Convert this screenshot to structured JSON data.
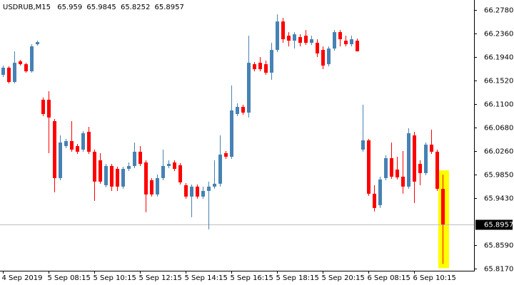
{
  "chart_data": {
    "type": "candlestick",
    "title": "USDRUB,M15",
    "up_color": "#4682b4",
    "down_color": "#ff0000",
    "price_line_color": "#c0c0c0",
    "highlight_color": "#ffff00",
    "ylim": [
      65.813,
      66.296
    ],
    "yticks": [
      {
        "value": 66.278,
        "label": "66.2780"
      },
      {
        "value": 66.236,
        "label": "66.2360"
      },
      {
        "value": 66.194,
        "label": "66.1940"
      },
      {
        "value": 66.152,
        "label": "66.1520"
      },
      {
        "value": 66.11,
        "label": "66.1100"
      },
      {
        "value": 66.068,
        "label": "66.0680"
      },
      {
        "value": 66.026,
        "label": "66.0260"
      },
      {
        "value": 65.985,
        "label": "65.9850"
      },
      {
        "value": 65.943,
        "label": "65.9430"
      },
      {
        "value": 65.859,
        "label": "65.8590"
      },
      {
        "value": 65.817,
        "label": "65.8170"
      }
    ],
    "categories": [
      "4 Sep 2019",
      null,
      null,
      null,
      null,
      null,
      null,
      null,
      "5 Sep 08:15",
      null,
      null,
      null,
      null,
      null,
      null,
      null,
      "5 Sep 10:15",
      null,
      null,
      null,
      null,
      null,
      null,
      null,
      "5 Sep 12:15",
      null,
      null,
      null,
      null,
      null,
      null,
      null,
      "5 Sep 14:15",
      null,
      null,
      null,
      null,
      null,
      null,
      null,
      "5 Sep 16:15",
      null,
      null,
      null,
      null,
      null,
      null,
      null,
      "5 Sep 18:15",
      null,
      null,
      null,
      null,
      null,
      null,
      null,
      "5 Sep 20:15",
      null,
      null,
      null,
      null,
      null,
      null,
      null,
      "6 Sep 08:15",
      null,
      null,
      null,
      null,
      null,
      null,
      null,
      "6 Sep 10:15",
      null,
      null,
      null,
      null,
      null
    ],
    "open": [
      66.1625,
      66.1752,
      66.1498,
      66.1866,
      66.1815,
      66.1688,
      66.2171,
      66.118,
      66.118,
      66.0799,
      65.9783,
      66.0354,
      66.0443,
      66.0354,
      66.0291,
      66.0609,
      66.0253,
      66.0101,
      65.9656,
      65.9999,
      65.9948,
      65.9631,
      65.9948,
      65.9999,
      66.0253,
      66.0062,
      65.9745,
      65.9491,
      65.9783,
      65.9999,
      66.0062,
      66.0012,
      65.9656,
      65.9453,
      65.9631,
      65.9453,
      65.9554,
      65.9631,
      65.9682,
      66.0228,
      66.0164,
      66.0926,
      66.1053,
      66.0951,
      66.1815,
      66.184,
      66.1815,
      66.1663,
      66.2069,
      66.2577,
      66.2323,
      66.2234,
      66.2298,
      66.2323,
      66.2196,
      66.2196,
      66.2069,
      66.1815,
      66.2094,
      66.2387,
      66.2234,
      66.2171,
      66.2234,
      66.0291,
      66.0456,
      65.9504,
      65.93,
      65.9783,
      66.0139,
      65.9935,
      65.9808,
      65.9631,
      66.0545,
      66.0037,
      65.9872,
      66.038,
      66.0253,
      65.959
    ],
    "high": [
      66.179,
      66.1777,
      66.2044,
      66.1891,
      66.184,
      66.2171,
      66.2234,
      66.1218,
      66.1332,
      66.0837,
      66.0545,
      66.0482,
      66.0799,
      66.0393,
      66.0621,
      66.0697,
      66.0291,
      66.0228,
      66.0037,
      66.0037,
      65.9986,
      65.9986,
      66.0062,
      66.0418,
      66.0354,
      66.0101,
      65.9783,
      65.9847,
      66.0291,
      66.0101,
      66.0101,
      66.005,
      65.9694,
      65.9669,
      65.9669,
      65.9631,
      65.972,
      66.0101,
      66.0545,
      66.0266,
      66.1434,
      66.1117,
      66.1091,
      66.2323,
      66.1853,
      66.1942,
      66.1879,
      66.2196,
      66.2704,
      66.2641,
      66.2387,
      66.2387,
      66.2348,
      66.2425,
      66.2323,
      66.226,
      66.2133,
      66.2133,
      66.2425,
      66.2425,
      66.2323,
      66.2323,
      66.2272,
      66.1091,
      66.0482,
      65.9656,
      65.9808,
      66.0189,
      66.0418,
      66.0164,
      66.0266,
      66.0672,
      66.0609,
      66.0101,
      66.0418,
      66.0647,
      66.0291,
      65.9845
    ],
    "low": [
      66.1586,
      66.1472,
      66.1472,
      66.179,
      66.1663,
      66.1663,
      66.2145,
      66.0888,
      66.0228,
      65.9529,
      65.9745,
      66.0316,
      66.0253,
      66.0215,
      66.0253,
      66.0215,
      65.9377,
      65.9682,
      65.9618,
      65.9554,
      65.9554,
      65.9593,
      65.991,
      65.9961,
      65.9999,
      65.9174,
      65.9453,
      65.9453,
      65.9745,
      65.9961,
      65.991,
      65.9669,
      65.9415,
      65.9085,
      65.9415,
      65.9415,
      65.8869,
      65.9593,
      65.9631,
      66.0126,
      66.0126,
      66.0888,
      66.0913,
      66.0863,
      66.1688,
      66.1688,
      66.1625,
      66.1536,
      66.2031,
      66.2196,
      66.2133,
      66.2094,
      66.2133,
      66.2158,
      66.2158,
      66.1942,
      66.1726,
      66.1777,
      66.2056,
      66.2133,
      66.2133,
      66.2133,
      66.2044,
      66.0253,
      65.9466,
      65.9186,
      65.925,
      65.9745,
      65.977,
      65.9758,
      65.9504,
      65.9593,
      65.9339,
      65.9656,
      65.9834,
      66.0215,
      65.9554,
      65.8252
    ],
    "close": [
      66.1752,
      66.1498,
      66.184,
      66.1815,
      66.1688,
      66.2133,
      66.2209,
      66.0926,
      66.0863,
      65.9783,
      66.0418,
      66.0443,
      66.0291,
      66.0253,
      66.0583,
      66.0253,
      65.972,
      65.972,
      65.9999,
      65.9631,
      65.9631,
      65.9948,
      65.9999,
      66.0253,
      66.0037,
      65.9491,
      65.9491,
      65.9783,
      65.9999,
      66.0037,
      65.9948,
      65.9707,
      65.9453,
      65.9631,
      65.9453,
      65.9554,
      65.9631,
      65.9682,
      66.0202,
      66.0164,
      66.099,
      66.1053,
      66.0951,
      66.184,
      66.1726,
      66.1726,
      66.1663,
      66.2069,
      66.2577,
      66.226,
      66.2234,
      66.2348,
      66.2196,
      66.2196,
      66.226,
      66.2006,
      66.179,
      66.2094,
      66.2387,
      66.226,
      66.2171,
      66.226,
      66.2044,
      66.0456,
      65.9504,
      65.925,
      65.9758,
      66.0139,
      65.9808,
      65.9796,
      65.9631,
      66.0583,
      65.972,
      65.9872,
      66.038,
      66.0253,
      65.9593,
      65.8957
    ]
  }
}
